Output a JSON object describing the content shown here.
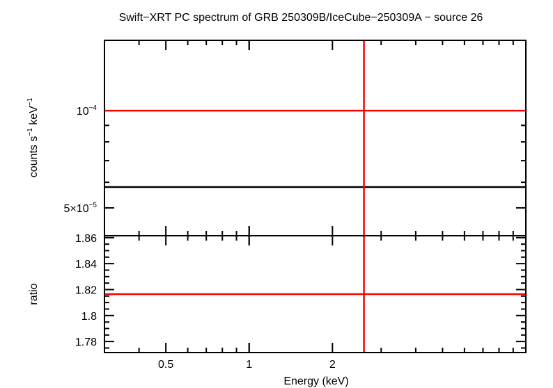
{
  "chart_data": [
    {
      "type": "scatter",
      "title": "Swift−XRT PC spectrum of GRB 250309B/IceCube−250309A − source 26",
      "xlabel": "Energy (keV)",
      "ylabel_parts": [
        "counts s",
        "−1",
        " keV",
        "−1"
      ],
      "xscale": "log",
      "yscale": "log",
      "xlim": [
        0.3,
        10
      ],
      "ylim": [
        4.1e-05,
        0.000165
      ],
      "y_tick_labels": [
        {
          "value": 0.0001,
          "base": "10",
          "exp": "−4"
        },
        {
          "value": 5e-05,
          "base": "5×10",
          "exp": "−5"
        }
      ],
      "series": [
        {
          "x": [
            2.6
          ],
          "y": [
            0.0001
          ],
          "color": "#ff0000"
        }
      ],
      "hlines": [
        {
          "y": 0.0001,
          "color": "#ff0000"
        },
        {
          "y": 5.8e-05,
          "color": "#000000"
        }
      ],
      "vlines": [
        {
          "x": 2.6,
          "color": "#ff0000"
        }
      ]
    },
    {
      "type": "scatter",
      "xlabel": "Energy (keV)",
      "ylabel": "ratio",
      "xscale": "log",
      "xlim": [
        0.3,
        10
      ],
      "ylim": [
        1.7715,
        1.8615
      ],
      "x_ticks": [
        {
          "value": 0.5,
          "label": "0.5"
        },
        {
          "value": 1,
          "label": "1"
        },
        {
          "value": 2,
          "label": "2"
        }
      ],
      "y_ticks": [
        {
          "value": 1.78,
          "label": "1.78"
        },
        {
          "value": 1.8,
          "label": "1.8"
        },
        {
          "value": 1.82,
          "label": "1.82"
        },
        {
          "value": 1.84,
          "label": "1.84"
        },
        {
          "value": 1.86,
          "label": "1.86"
        }
      ],
      "series": [
        {
          "x": [
            2.6
          ],
          "y": [
            1.8165
          ],
          "color": "#ff0000"
        }
      ],
      "hlines": [
        {
          "y": 1.8165,
          "color": "#ff0000"
        }
      ],
      "vlines": [
        {
          "x": 2.6,
          "color": "#ff0000"
        }
      ]
    }
  ]
}
